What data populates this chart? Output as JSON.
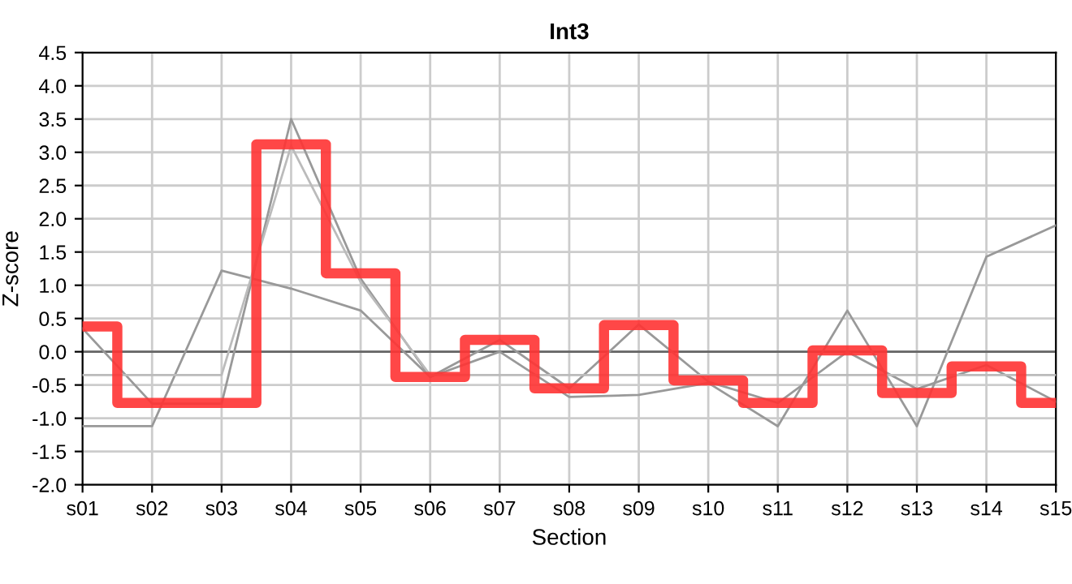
{
  "chart_data": {
    "type": "line",
    "title": "Int3",
    "xlabel": "Section",
    "ylabel": "Z-score",
    "categories": [
      "s01",
      "s02",
      "s03",
      "s04",
      "s05",
      "s06",
      "s07",
      "s08",
      "s09",
      "s10",
      "s11",
      "s12",
      "s13",
      "s14",
      "s15"
    ],
    "series": [
      {
        "color": "#999999",
        "values": [
          0.35,
          -0.78,
          -0.78,
          3.5,
          1.1,
          -0.38,
          0.18,
          -0.55,
          0.41,
          -0.45,
          -0.77,
          0.0,
          -0.56,
          -0.2,
          -0.75
        ]
      },
      {
        "color": "#999999",
        "values": [
          -1.12,
          -1.12,
          1.22,
          0.95,
          0.62,
          -0.38,
          0.0,
          -0.68,
          -0.65,
          -0.47,
          -1.12,
          0.62,
          -1.12,
          1.43,
          1.9
        ]
      },
      {
        "color": "#bbbbbb",
        "values": [
          -0.35,
          -0.35,
          -0.35,
          3.1,
          1.05,
          -0.35,
          -0.35,
          -0.35,
          -0.35,
          -0.35,
          -0.35,
          -0.35,
          -0.35,
          -0.35,
          -0.35
        ]
      },
      {
        "type": "step",
        "color": "#ff3333",
        "values": [
          0.38,
          -0.77,
          -0.77,
          3.12,
          1.18,
          -0.38,
          0.18,
          -0.55,
          0.4,
          -0.43,
          -0.77,
          0.02,
          -0.62,
          -0.22,
          -0.77
        ]
      }
    ],
    "ylim": [
      -2.0,
      4.5
    ],
    "yticks": [
      {
        "value": -2,
        "label": "-2.0"
      },
      -1.5,
      {
        "value": -1,
        "label": "-1.0"
      },
      -0.5,
      {
        "value": 0,
        "label": "0.0"
      },
      0.5,
      {
        "value": 1,
        "label": "1.0"
      },
      1.5,
      {
        "value": 2,
        "label": "2.0"
      },
      2.5,
      {
        "value": 3,
        "label": "3.0"
      },
      3.5,
      {
        "value": 4,
        "label": "4.0"
      },
      4.5
    ],
    "ref_lines": [
      {
        "axis": "y",
        "value": 0,
        "color": "#666666"
      }
    ],
    "grid": true
  }
}
